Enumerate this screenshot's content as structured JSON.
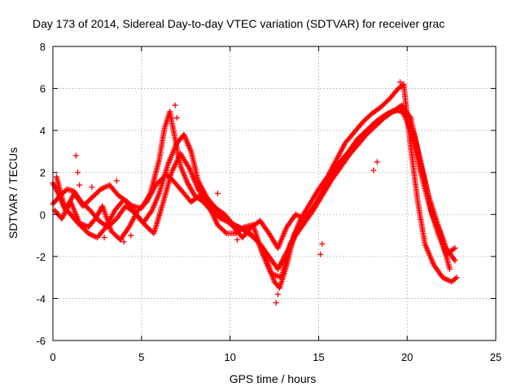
{
  "chart_data": {
    "type": "scatter",
    "title": "Day 173 of 2014, Sidereal Day-to-day VTEC variation (SDTVAR) for receiver grac",
    "xlabel": "GPS time / hours",
    "ylabel": "SDTVAR / TECUs",
    "xlim": [
      0,
      25
    ],
    "ylim": [
      -6,
      8
    ],
    "x_ticks": [
      0,
      5,
      10,
      15,
      20,
      25
    ],
    "x_tick_labels": [
      "0",
      "5",
      "10",
      "15",
      "20",
      "25"
    ],
    "y_ticks": [
      -6,
      -4,
      -2,
      0,
      2,
      4,
      6,
      8
    ],
    "y_tick_labels": [
      "-6",
      "-4",
      "-2",
      "0",
      "2",
      "4",
      "6",
      "8"
    ],
    "grid": true,
    "marker": "+",
    "color": "#ff0000",
    "series": [
      {
        "name": "track-1",
        "x": [
          0,
          0.3,
          0.6,
          1.0,
          1.4,
          2.0,
          2.5,
          3.0,
          3.5,
          4.0,
          4.5,
          5.0,
          5.5,
          6.0,
          6.3,
          6.6,
          6.9,
          7.2,
          7.6,
          8.0,
          8.5,
          9.0,
          9.5,
          10.0,
          10.5,
          11.0,
          11.5,
          12.0,
          12.5,
          12.8,
          13.2,
          13.6,
          14.0,
          14.5,
          15.0,
          15.5,
          16.0,
          16.5,
          17.0,
          17.5,
          18.0,
          18.5,
          19.0,
          19.5,
          19.8,
          20.2,
          20.6,
          21.0,
          21.5,
          22.0,
          22.5,
          22.8
        ],
        "y": [
          1.5,
          1.0,
          0.4,
          0.0,
          -0.4,
          -0.9,
          -1.1,
          -0.6,
          0.2,
          0.7,
          0.4,
          0.3,
          1.0,
          2.6,
          4.1,
          4.9,
          3.6,
          2.3,
          1.5,
          0.9,
          0.6,
          0.1,
          -0.2,
          -0.4,
          -0.6,
          -0.8,
          -1.2,
          -2.0,
          -3.2,
          -3.5,
          -2.4,
          -1.0,
          -0.2,
          0.5,
          1.2,
          1.8,
          2.6,
          3.4,
          3.9,
          4.4,
          4.8,
          5.1,
          5.5,
          6.0,
          6.2,
          3.2,
          0.6,
          -1.4,
          -2.4,
          -3.0,
          -3.2,
          -3.0
        ]
      },
      {
        "name": "track-2",
        "x": [
          0,
          0.4,
          0.8,
          1.2,
          1.6,
          2.1,
          2.6,
          3.1,
          3.6,
          4.1,
          4.6,
          5.1,
          5.6,
          6.0,
          6.5,
          7.0,
          7.4,
          7.8,
          8.2,
          8.7,
          9.2,
          9.7,
          10.2,
          10.7,
          11.2,
          11.7,
          12.2,
          12.7,
          13.2,
          13.7,
          14.2,
          14.7,
          15.2,
          15.7,
          16.2,
          16.7,
          17.2,
          17.7,
          18.2,
          18.7,
          19.2,
          19.7,
          20.2,
          20.7,
          21.2,
          21.7,
          22.2,
          22.7
        ],
        "y": [
          0.5,
          0.9,
          1.2,
          1.1,
          0.6,
          0.2,
          -0.3,
          -0.6,
          -0.2,
          0.4,
          0.1,
          -0.4,
          0.2,
          1.0,
          2.4,
          3.4,
          3.8,
          3.0,
          1.6,
          0.8,
          0.3,
          0.0,
          -0.5,
          -0.7,
          -1.0,
          -1.4,
          -2.0,
          -2.6,
          -1.8,
          -1.0,
          -0.4,
          0.2,
          0.9,
          1.6,
          2.2,
          2.8,
          3.3,
          3.8,
          4.2,
          4.6,
          4.9,
          5.2,
          4.6,
          2.6,
          0.9,
          -0.4,
          -1.6,
          -2.2
        ]
      },
      {
        "name": "track-3",
        "x": [
          0.2,
          0.7,
          1.2,
          1.7,
          2.2,
          2.7,
          3.2,
          3.7,
          4.2,
          4.7,
          5.2,
          5.7,
          6.2,
          6.7,
          7.2,
          7.7,
          8.2,
          8.7,
          9.2,
          9.7,
          10.2,
          10.7,
          11.2,
          11.7,
          12.2,
          12.7,
          13.2,
          13.7,
          14.2,
          14.7,
          15.2,
          15.7,
          16.2,
          16.7,
          17.2,
          17.7,
          18.2,
          18.7,
          19.2,
          19.7,
          20.2,
          20.7,
          21.2,
          21.7,
          22.2,
          22.7
        ],
        "y": [
          1.8,
          0.2,
          1.0,
          0.4,
          0.8,
          1.2,
          1.4,
          0.9,
          0.6,
          0.0,
          -0.5,
          -0.9,
          0.5,
          2.0,
          2.9,
          2.2,
          1.2,
          0.6,
          0.2,
          -0.2,
          -0.6,
          -1.1,
          -0.6,
          -0.3,
          -0.9,
          -1.6,
          -0.6,
          0.0,
          -0.2,
          0.3,
          1.0,
          1.9,
          2.5,
          3.0,
          3.6,
          4.0,
          4.4,
          4.7,
          4.9,
          5.0,
          4.0,
          2.2,
          0.6,
          -0.8,
          -1.9,
          -1.6
        ]
      },
      {
        "name": "track-4",
        "x": [
          0.1,
          0.5,
          1.0,
          1.5,
          2.0,
          2.4,
          2.8,
          3.3,
          3.8,
          4.3,
          4.8,
          5.3,
          5.8,
          6.4,
          6.8,
          7.3,
          7.8,
          8.3,
          8.8,
          9.3,
          9.8,
          10.3,
          10.8,
          11.3,
          11.8,
          12.3,
          12.9,
          13.4,
          13.9,
          14.4,
          14.9,
          15.4,
          15.9,
          16.4,
          16.9,
          17.4,
          17.9,
          18.4,
          18.9,
          19.4,
          19.9,
          20.4,
          20.9,
          21.4,
          21.9,
          22.4
        ],
        "y": [
          0.2,
          -0.2,
          0.6,
          -0.4,
          -0.6,
          -0.2,
          0.4,
          -0.8,
          -1.2,
          -0.6,
          0.2,
          0.6,
          1.4,
          1.9,
          1.6,
          1.1,
          0.6,
          0.9,
          0.4,
          -0.5,
          -0.9,
          -0.9,
          -0.6,
          -0.5,
          -1.8,
          -2.8,
          -3.0,
          -1.4,
          -0.6,
          0.0,
          0.6,
          1.4,
          2.0,
          2.6,
          3.2,
          3.7,
          4.1,
          4.5,
          4.8,
          5.0,
          4.8,
          3.8,
          2.0,
          0.0,
          -1.0,
          -2.6
        ]
      },
      {
        "name": "scatter-extra",
        "x": [
          1.3,
          1.4,
          1.5,
          12.6,
          12.7,
          15.1,
          15.2,
          18.1,
          18.3,
          19.6,
          19.7,
          6.9,
          7.0,
          9.3,
          10.4,
          4.0,
          4.4,
          2.2,
          2.9,
          3.6
        ],
        "y": [
          2.8,
          2.0,
          1.4,
          -4.2,
          -3.8,
          -1.9,
          -1.4,
          2.1,
          2.5,
          6.3,
          6.1,
          5.2,
          4.6,
          1.0,
          -1.2,
          -1.3,
          -1.0,
          1.3,
          -1.1,
          1.6
        ]
      }
    ]
  }
}
